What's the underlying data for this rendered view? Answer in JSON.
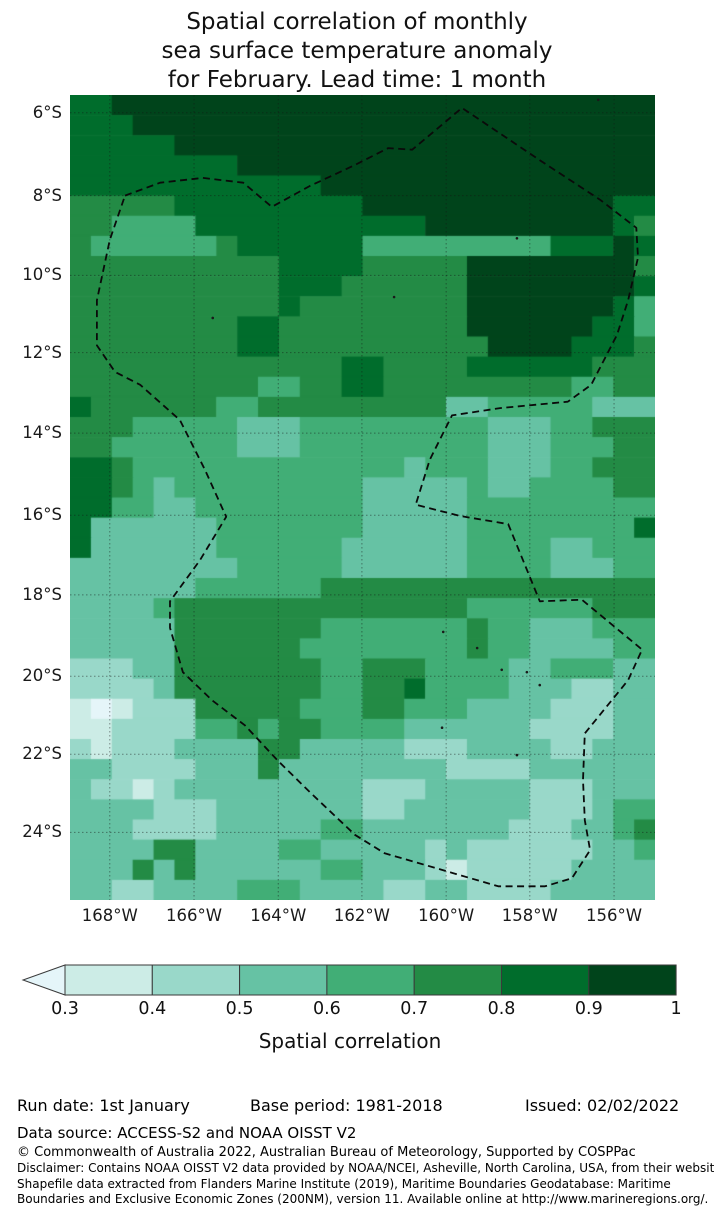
{
  "title": {
    "lines": [
      "Spatial correlation of monthly",
      "sea surface temperature anomaly",
      "for February. Lead time: 1 month"
    ]
  },
  "map": {
    "lat_ticks": [
      {
        "label": "6°S",
        "pos": 2.2
      },
      {
        "label": "8°S",
        "pos": 12.5
      },
      {
        "label": "10°S",
        "pos": 22.4
      },
      {
        "label": "12°S",
        "pos": 32.0
      },
      {
        "label": "14°S",
        "pos": 42.0
      },
      {
        "label": "16°S",
        "pos": 52.2
      },
      {
        "label": "18°S",
        "pos": 62.1
      },
      {
        "label": "20°S",
        "pos": 72.2
      },
      {
        "label": "22°S",
        "pos": 81.9
      },
      {
        "label": "24°S",
        "pos": 91.6
      }
    ],
    "lon_ticks": [
      {
        "label": "168°W",
        "pos": 6.8
      },
      {
        "label": "166°W",
        "pos": 21.2
      },
      {
        "label": "164°W",
        "pos": 35.6
      },
      {
        "label": "162°W",
        "pos": 49.9
      },
      {
        "label": "160°W",
        "pos": 64.3
      },
      {
        "label": "158°W",
        "pos": 78.6
      },
      {
        "label": "156°W",
        "pos": 93.0
      }
    ]
  },
  "chart_data": {
    "type": "heatmap",
    "title": "Spatial correlation of monthly sea surface temperature anomaly for February. Lead time: 1 month",
    "value_label": "Spatial correlation",
    "lon_range": [
      "169°W",
      "155°W"
    ],
    "lat_range": [
      "5.5°S",
      "25.5°S"
    ],
    "grid_cols": 28,
    "grid_rows": 40,
    "bins": [
      "<0.3",
      "0.3-0.4",
      "0.4-0.5",
      "0.5-0.6",
      "0.6-0.7",
      "0.7-0.8",
      "0.8-0.9",
      "0.9-1.0"
    ],
    "bin_colors": [
      "#e5f5f9",
      "#ccece6",
      "#99d8c9",
      "#66c2a4",
      "#41ae76",
      "#238b45",
      "#006d2c",
      "#00441b"
    ],
    "grid_rle": [
      [
        [
          6,
          2
        ],
        [
          7,
          26
        ]
      ],
      [
        [
          6,
          3
        ],
        [
          7,
          25
        ]
      ],
      [
        [
          6,
          5
        ],
        [
          7,
          23
        ]
      ],
      [
        [
          6,
          8
        ],
        [
          7,
          20
        ]
      ],
      [
        [
          6,
          12
        ],
        [
          7,
          16
        ]
      ],
      [
        [
          5,
          5
        ],
        [
          6,
          9
        ],
        [
          7,
          12
        ],
        [
          6,
          2
        ]
      ],
      [
        [
          5,
          2
        ],
        [
          4,
          4
        ],
        [
          6,
          11
        ],
        [
          7,
          9
        ],
        [
          6,
          1
        ],
        [
          5,
          1
        ]
      ],
      [
        [
          5,
          1
        ],
        [
          4,
          6
        ],
        [
          5,
          1
        ],
        [
          6,
          6
        ],
        [
          4,
          9
        ],
        [
          6,
          3
        ],
        [
          7,
          1
        ],
        [
          6,
          1
        ]
      ],
      [
        [
          5,
          10
        ],
        [
          6,
          4
        ],
        [
          5,
          5
        ],
        [
          7,
          8
        ],
        [
          5,
          1
        ]
      ],
      [
        [
          5,
          10
        ],
        [
          6,
          3
        ],
        [
          5,
          6
        ],
        [
          7,
          8
        ],
        [
          6,
          1
        ]
      ],
      [
        [
          5,
          10
        ],
        [
          6,
          1
        ],
        [
          5,
          8
        ],
        [
          7,
          7
        ],
        [
          6,
          1
        ],
        [
          4,
          1
        ]
      ],
      [
        [
          5,
          8
        ],
        [
          6,
          2
        ],
        [
          5,
          9
        ],
        [
          7,
          6
        ],
        [
          6,
          2
        ],
        [
          4,
          1
        ]
      ],
      [
        [
          5,
          8
        ],
        [
          6,
          2
        ],
        [
          5,
          10
        ],
        [
          7,
          4
        ],
        [
          6,
          3
        ],
        [
          5,
          1
        ]
      ],
      [
        [
          5,
          13
        ],
        [
          6,
          2
        ],
        [
          5,
          4
        ],
        [
          6,
          6
        ],
        [
          5,
          3
        ]
      ],
      [
        [
          5,
          9
        ],
        [
          4,
          2
        ],
        [
          5,
          2
        ],
        [
          6,
          2
        ],
        [
          5,
          9
        ],
        [
          4,
          2
        ],
        [
          5,
          2
        ]
      ],
      [
        [
          6,
          1
        ],
        [
          5,
          6
        ],
        [
          4,
          2
        ],
        [
          5,
          9
        ],
        [
          3,
          2
        ],
        [
          4,
          5
        ],
        [
          3,
          3
        ]
      ],
      [
        [
          5,
          3
        ],
        [
          4,
          5
        ],
        [
          3,
          3
        ],
        [
          4,
          9
        ],
        [
          3,
          3
        ],
        [
          4,
          2
        ],
        [
          5,
          3
        ]
      ],
      [
        [
          5,
          2
        ],
        [
          4,
          6
        ],
        [
          3,
          3
        ],
        [
          4,
          9
        ],
        [
          3,
          3
        ],
        [
          4,
          3
        ],
        [
          5,
          2
        ]
      ],
      [
        [
          6,
          2
        ],
        [
          5,
          1
        ],
        [
          4,
          13
        ],
        [
          3,
          1
        ],
        [
          4,
          3
        ],
        [
          3,
          3
        ],
        [
          4,
          2
        ],
        [
          5,
          3
        ]
      ],
      [
        [
          6,
          2
        ],
        [
          5,
          1
        ],
        [
          4,
          1
        ],
        [
          3,
          1
        ],
        [
          4,
          9
        ],
        [
          3,
          5
        ],
        [
          4,
          1
        ],
        [
          3,
          2
        ],
        [
          4,
          4
        ],
        [
          5,
          2
        ]
      ],
      [
        [
          6,
          2
        ],
        [
          4,
          2
        ],
        [
          3,
          2
        ],
        [
          4,
          8
        ],
        [
          3,
          5
        ],
        [
          4,
          9
        ]
      ],
      [
        [
          6,
          1
        ],
        [
          3,
          6
        ],
        [
          4,
          7
        ],
        [
          3,
          5
        ],
        [
          4,
          8
        ],
        [
          6,
          1
        ]
      ],
      [
        [
          6,
          1
        ],
        [
          3,
          6
        ],
        [
          4,
          6
        ],
        [
          3,
          6
        ],
        [
          4,
          4
        ],
        [
          3,
          2
        ],
        [
          4,
          3
        ]
      ],
      [
        [
          3,
          8
        ],
        [
          4,
          5
        ],
        [
          3,
          6
        ],
        [
          4,
          4
        ],
        [
          3,
          3
        ],
        [
          4,
          2
        ]
      ],
      [
        [
          3,
          6
        ],
        [
          4,
          6
        ],
        [
          5,
          16
        ]
      ],
      [
        [
          3,
          4
        ],
        [
          4,
          1
        ],
        [
          5,
          14
        ],
        [
          4,
          6
        ],
        [
          5,
          3
        ]
      ],
      [
        [
          3,
          5
        ],
        [
          5,
          7
        ],
        [
          4,
          7
        ],
        [
          5,
          1
        ],
        [
          4,
          2
        ],
        [
          3,
          3
        ],
        [
          4,
          3
        ]
      ],
      [
        [
          3,
          5
        ],
        [
          5,
          6
        ],
        [
          4,
          8
        ],
        [
          5,
          1
        ],
        [
          4,
          2
        ],
        [
          3,
          4
        ],
        [
          4,
          2
        ]
      ],
      [
        [
          2,
          3
        ],
        [
          3,
          2
        ],
        [
          5,
          7
        ],
        [
          4,
          2
        ],
        [
          5,
          3
        ],
        [
          4,
          4
        ],
        [
          3,
          2
        ],
        [
          4,
          3
        ],
        [
          3,
          2
        ]
      ],
      [
        [
          2,
          4
        ],
        [
          3,
          1
        ],
        [
          5,
          7
        ],
        [
          4,
          2
        ],
        [
          5,
          2
        ],
        [
          6,
          1
        ],
        [
          4,
          4
        ],
        [
          3,
          3
        ],
        [
          2,
          2
        ],
        [
          3,
          2
        ]
      ],
      [
        [
          1,
          1
        ],
        [
          0,
          1
        ],
        [
          1,
          1
        ],
        [
          2,
          3
        ],
        [
          5,
          5
        ],
        [
          4,
          3
        ],
        [
          5,
          2
        ],
        [
          4,
          3
        ],
        [
          3,
          4
        ],
        [
          2,
          3
        ],
        [
          3,
          2
        ]
      ],
      [
        [
          1,
          2
        ],
        [
          2,
          4
        ],
        [
          4,
          2
        ],
        [
          5,
          1
        ],
        [
          4,
          1
        ],
        [
          5,
          2
        ],
        [
          4,
          4
        ],
        [
          3,
          6
        ],
        [
          2,
          4
        ],
        [
          3,
          2
        ]
      ],
      [
        [
          2,
          1
        ],
        [
          1,
          1
        ],
        [
          2,
          3
        ],
        [
          3,
          4
        ],
        [
          5,
          2
        ],
        [
          3,
          5
        ],
        [
          2,
          3
        ],
        [
          3,
          4
        ],
        [
          2,
          2
        ],
        [
          3,
          3
        ]
      ],
      [
        [
          3,
          2
        ],
        [
          2,
          4
        ],
        [
          3,
          3
        ],
        [
          5,
          1
        ],
        [
          3,
          8
        ],
        [
          2,
          4
        ],
        [
          3,
          6
        ]
      ],
      [
        [
          3,
          1
        ],
        [
          2,
          2
        ],
        [
          1,
          1
        ],
        [
          2,
          1
        ],
        [
          3,
          9
        ],
        [
          2,
          3
        ],
        [
          3,
          5
        ],
        [
          2,
          3
        ],
        [
          3,
          3
        ]
      ],
      [
        [
          3,
          4
        ],
        [
          2,
          3
        ],
        [
          3,
          7
        ],
        [
          2,
          2
        ],
        [
          3,
          6
        ],
        [
          2,
          3
        ],
        [
          3,
          1
        ],
        [
          4,
          2
        ]
      ],
      [
        [
          3,
          3
        ],
        [
          2,
          4
        ],
        [
          3,
          5
        ],
        [
          4,
          2
        ],
        [
          3,
          7
        ],
        [
          2,
          3
        ],
        [
          3,
          2
        ],
        [
          4,
          1
        ],
        [
          5,
          1
        ]
      ],
      [
        [
          3,
          4
        ],
        [
          5,
          2
        ],
        [
          3,
          4
        ],
        [
          4,
          2
        ],
        [
          3,
          5
        ],
        [
          2,
          1
        ],
        [
          3,
          1
        ],
        [
          2,
          6
        ],
        [
          3,
          2
        ],
        [
          4,
          1
        ]
      ],
      [
        [
          3,
          3
        ],
        [
          5,
          1
        ],
        [
          3,
          1
        ],
        [
          5,
          1
        ],
        [
          3,
          6
        ],
        [
          4,
          2
        ],
        [
          3,
          3
        ],
        [
          2,
          1
        ],
        [
          1,
          1
        ],
        [
          2,
          5
        ],
        [
          3,
          4
        ]
      ],
      [
        [
          3,
          2
        ],
        [
          2,
          2
        ],
        [
          3,
          4
        ],
        [
          4,
          3
        ],
        [
          3,
          4
        ],
        [
          2,
          2
        ],
        [
          3,
          2
        ],
        [
          2,
          4
        ],
        [
          3,
          5
        ]
      ]
    ],
    "eez_boundary_pct": [
      [
        9.4,
        12.5
      ],
      [
        15.4,
        10.9
      ],
      [
        22.7,
        10.3
      ],
      [
        29.6,
        10.9
      ],
      [
        34.5,
        13.9
      ],
      [
        41.0,
        11.3
      ],
      [
        48.7,
        8.7
      ],
      [
        54.4,
        6.6
      ],
      [
        58.5,
        6.8
      ],
      [
        67.0,
        1.6
      ],
      [
        80.3,
        8.1
      ],
      [
        90.6,
        13.0
      ],
      [
        96.8,
        16.5
      ],
      [
        97.1,
        20.2
      ],
      [
        95.4,
        25.5
      ],
      [
        93.5,
        29.8
      ],
      [
        89.1,
        36.0
      ],
      [
        85.1,
        38.1
      ],
      [
        73.5,
        38.9
      ],
      [
        65.3,
        39.8
      ],
      [
        61.5,
        45.3
      ],
      [
        59.1,
        50.9
      ],
      [
        66.7,
        52.3
      ],
      [
        74.9,
        53.3
      ],
      [
        80.3,
        62.9
      ],
      [
        87.5,
        62.7
      ],
      [
        97.8,
        68.9
      ],
      [
        95.4,
        72.7
      ],
      [
        88.0,
        79.3
      ],
      [
        87.7,
        85.1
      ],
      [
        88.0,
        90.1
      ],
      [
        88.9,
        93.8
      ],
      [
        85.8,
        97.3
      ],
      [
        81.2,
        98.3
      ],
      [
        73.2,
        98.3
      ],
      [
        61.9,
        95.9
      ],
      [
        53.8,
        94.2
      ],
      [
        48.7,
        91.9
      ],
      [
        41.0,
        86.6
      ],
      [
        35.4,
        82.6
      ],
      [
        29.9,
        78.3
      ],
      [
        24.3,
        75.2
      ],
      [
        19.3,
        71.7
      ],
      [
        17.1,
        66.2
      ],
      [
        17.1,
        62.9
      ],
      [
        22.2,
        57.8
      ],
      [
        26.7,
        52.4
      ],
      [
        23.1,
        46.6
      ],
      [
        18.8,
        40.4
      ],
      [
        12.0,
        36.0
      ],
      [
        7.7,
        34.4
      ],
      [
        4.6,
        31.1
      ],
      [
        4.6,
        25.5
      ],
      [
        6.8,
        18.0
      ]
    ],
    "islands_pct": [
      [
        90.3,
        0.6
      ],
      [
        76.4,
        17.8
      ],
      [
        55.4,
        25.1
      ],
      [
        24.4,
        27.7
      ],
      [
        63.8,
        66.7
      ],
      [
        69.6,
        68.7
      ],
      [
        73.8,
        71.4
      ],
      [
        78.1,
        71.7
      ],
      [
        80.3,
        73.3
      ],
      [
        63.6,
        78.6
      ],
      [
        76.4,
        82.0
      ]
    ],
    "gridline_style": "dotted",
    "legend_position": "bottom"
  },
  "colorbar": {
    "arrow_color": "#e5f5f9",
    "segment_colors": [
      "#ccece6",
      "#99d8c9",
      "#66c2a4",
      "#41ae76",
      "#238b45",
      "#006d2c",
      "#00441b"
    ],
    "ticks": [
      "0.3",
      "0.4",
      "0.5",
      "0.6",
      "0.7",
      "0.8",
      "0.9",
      "1"
    ],
    "label": "Spatial correlation"
  },
  "footer": {
    "run_date": "Run date: 1st January",
    "base_period": "Base period: 1981-2018",
    "issued": "Issued: 02/02/2022",
    "data_source": "Data source: ACCESS-S2 and NOAA OISST V2",
    "copyright": "© Commonwealth of Australia 2022, Australian Bureau of Meteorology, Supported by COSPPac",
    "disclaimer": "Disclaimer: Contains NOAA OISST V2 data provided by NOAA/NCEI, Asheville, North Carolina, USA, from their website",
    "shapefile_line1": "Shapefile data extracted from Flanders Marine Institute (2019), Maritime Boundaries Geodatabase: Maritime",
    "shapefile_line2": "Boundaries and Exclusive Economic Zones (200NM), version 11. Available online at http://www.marineregions.org/."
  }
}
